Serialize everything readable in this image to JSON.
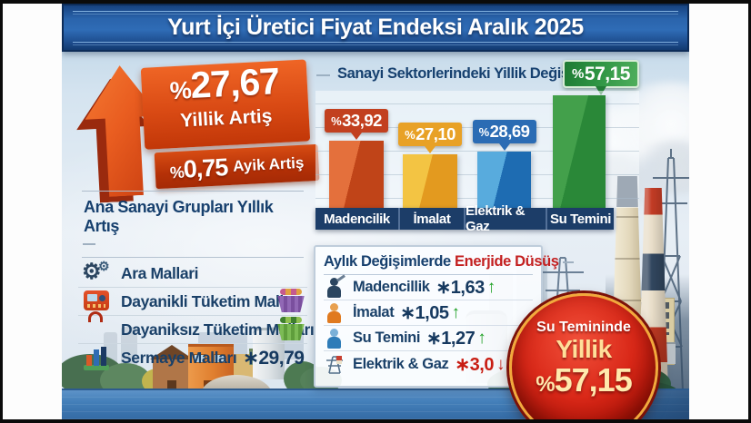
{
  "title": "Yurt İçi Üretici Fiyat Endeksi Aralık 2025",
  "headline": {
    "annual_value": "%27,67",
    "annual_label": "Yillik Artiş",
    "monthly_value": "%0,75",
    "monthly_label": "Ayik Artiş"
  },
  "main_groups": {
    "title": "Ana Sanayi Grupları Yıllık Artış",
    "items": [
      {
        "label": "Ara Mallari",
        "icon": "gears-icon",
        "value": ""
      },
      {
        "label": "Dayanikli Tüketim Malları",
        "icon": "appliance-icon",
        "value": ""
      },
      {
        "label": "Dayaniksız Tüketim Malları",
        "icon": "basket-icon",
        "value": ""
      },
      {
        "label": "Sermaye Malları",
        "icon": "bar-chart-icon",
        "value": "∗29,79"
      }
    ]
  },
  "monthly": {
    "title_main": "Aylık Değişimlerde",
    "title_highlight": "Enerjide Düsüş",
    "rows": [
      {
        "label": "Madencillik",
        "value": "∗1,63",
        "arrow": "↑",
        "direction": "up",
        "icon": "miner-icon"
      },
      {
        "label": "İmalat",
        "value": "∗1,05",
        "arrow": "↑",
        "direction": "up",
        "icon": "worker-icon"
      },
      {
        "label": "Su Temini",
        "value": "∗1,27",
        "arrow": "↑",
        "direction": "up",
        "icon": "person-icon"
      },
      {
        "label": "Elektrik & Gaz",
        "value": "∗3,0",
        "arrow": "↓",
        "direction": "down",
        "icon": "pylon-icon"
      }
    ]
  },
  "badge_circle": {
    "line1": "Su Temininde",
    "line2": "Yillik",
    "line3": "%57,15"
  },
  "chart_data": {
    "type": "bar",
    "title": "Sanayi Sektorlerindeki Yillik Değişim",
    "header_badge_label": "%57,15",
    "categories": [
      "Madencilik",
      "İmalat",
      "Elektrik & Gaz",
      "Su Temini"
    ],
    "values": [
      33.92,
      27.1,
      28.69,
      57.15
    ],
    "value_labels": [
      "%33,92",
      "%27,10",
      "%28,69",
      "%57,15"
    ],
    "ylim": [
      0,
      60
    ],
    "grid": true,
    "legend": "none",
    "bar_colors_light": [
      "#e4703c",
      "#f3c443",
      "#58abdd",
      "#43a04b"
    ],
    "bar_colors_dark": [
      "#c04418",
      "#e39a1f",
      "#1e6cb2",
      "#2a8838"
    ],
    "badge_colors": [
      "#c2401f",
      "#e8a126",
      "#2b6cb4",
      "#2e9443"
    ]
  },
  "colors": {
    "accent_orange": "#d94a14",
    "accent_red": "#c81e14",
    "accent_green": "#2e9443",
    "navy_text": "#17406e",
    "titlebar_blue": "#2a64ac"
  }
}
